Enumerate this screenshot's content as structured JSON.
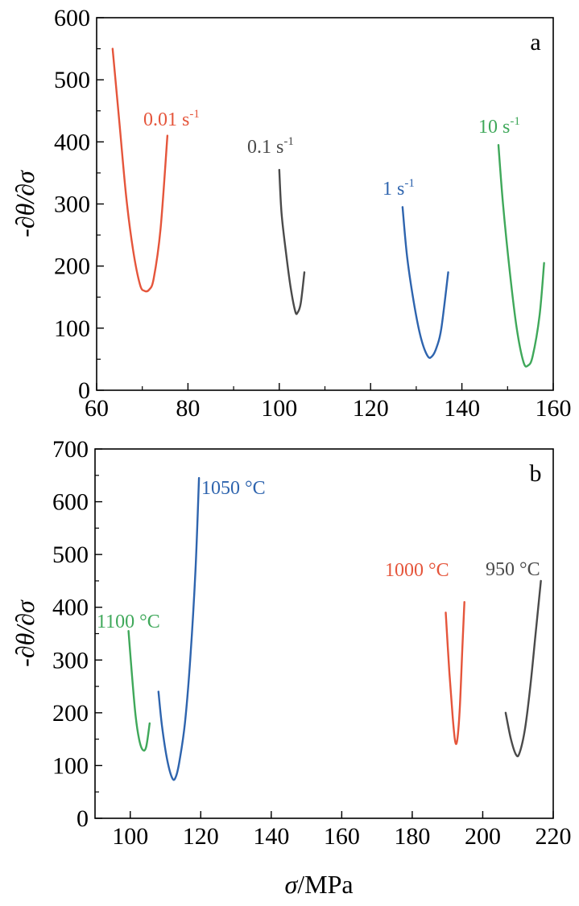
{
  "xlabel": {
    "sym": "σ",
    "unit": "/MPa"
  },
  "chart_data": [
    {
      "type": "line",
      "panel_label": "a",
      "ylabel": "-∂θ/∂σ",
      "xlim": [
        60,
        160
      ],
      "ylim": [
        0,
        600
      ],
      "x_ticks": [
        60,
        80,
        100,
        120,
        140,
        160
      ],
      "y_ticks": [
        0,
        100,
        200,
        300,
        400,
        500,
        600
      ],
      "series": [
        {
          "name": "0.01 s",
          "sup": "-1",
          "color": "#E5553B",
          "points": [
            [
              63.5,
              550
            ],
            [
              65,
              430
            ],
            [
              66.5,
              310
            ],
            [
              68,
              225
            ],
            [
              69.5,
              170
            ],
            [
              70.5,
              160
            ],
            [
              71.5,
              162
            ],
            [
              72.5,
              180
            ],
            [
              74,
              260
            ],
            [
              75.5,
              410
            ]
          ]
        },
        {
          "name": "0.1 s",
          "sup": "-1",
          "color": "#4A4A4A",
          "points": [
            [
              100,
              355
            ],
            [
              100.5,
              285
            ],
            [
              101.5,
              220
            ],
            [
              102.5,
              165
            ],
            [
              103.5,
              127
            ],
            [
              104,
              125
            ],
            [
              104.7,
              140
            ],
            [
              105.5,
              190
            ]
          ]
        },
        {
          "name": "1 s",
          "sup": "-1",
          "color": "#2E64AE",
          "points": [
            [
              127,
              295
            ],
            [
              128,
              215
            ],
            [
              129.5,
              140
            ],
            [
              131,
              85
            ],
            [
              132.5,
              55
            ],
            [
              133.5,
              55
            ],
            [
              134.5,
              70
            ],
            [
              135.5,
              100
            ],
            [
              137,
              190
            ]
          ]
        },
        {
          "name": "10 s",
          "sup": "-1",
          "color": "#3FA85A",
          "points": [
            [
              148,
              395
            ],
            [
              149,
              300
            ],
            [
              150.5,
              190
            ],
            [
              152,
              100
            ],
            [
              153.5,
              45
            ],
            [
              154.5,
              40
            ],
            [
              155.5,
              55
            ],
            [
              157,
              120
            ],
            [
              158,
              205
            ]
          ]
        }
      ]
    },
    {
      "type": "line",
      "panel_label": "b",
      "ylabel": "-∂θ/∂σ",
      "xlim": [
        90,
        220
      ],
      "ylim": [
        0,
        700
      ],
      "x_ticks": [
        100,
        120,
        140,
        160,
        180,
        200,
        220
      ],
      "y_ticks": [
        0,
        100,
        200,
        300,
        400,
        500,
        600,
        700
      ],
      "series": [
        {
          "name": "1100 °C",
          "sup": "",
          "color": "#3FA85A",
          "points": [
            [
              99.5,
              355
            ],
            [
              100.5,
              270
            ],
            [
              101.5,
              195
            ],
            [
              102.5,
              150
            ],
            [
              103.5,
              130
            ],
            [
              104.5,
              135
            ],
            [
              105.5,
              180
            ]
          ]
        },
        {
          "name": "1050 °C",
          "sup": "",
          "color": "#2E64AE",
          "points": [
            [
              108,
              240
            ],
            [
              109,
              175
            ],
            [
              110.5,
              110
            ],
            [
              112,
              75
            ],
            [
              113,
              80
            ],
            [
              114,
              110
            ],
            [
              115.5,
              180
            ],
            [
              117,
              300
            ],
            [
              118.5,
              470
            ],
            [
              119.5,
              645
            ]
          ]
        },
        {
          "name": "1000 °C",
          "sup": "",
          "color": "#E5553B",
          "points": [
            [
              189.5,
              390
            ],
            [
              190.5,
              280
            ],
            [
              191.5,
              190
            ],
            [
              192.2,
              145
            ],
            [
              192.8,
              150
            ],
            [
              193.5,
              210
            ],
            [
              194.2,
              320
            ],
            [
              194.8,
              410
            ]
          ]
        },
        {
          "name": "950 °C",
          "sup": "",
          "color": "#4A4A4A",
          "points": [
            [
              206.5,
              200
            ],
            [
              208,
              150
            ],
            [
              209.5,
              120
            ],
            [
              210.5,
              125
            ],
            [
              212,
              170
            ],
            [
              213.5,
              250
            ],
            [
              215,
              350
            ],
            [
              216.5,
              450
            ]
          ]
        }
      ]
    }
  ]
}
